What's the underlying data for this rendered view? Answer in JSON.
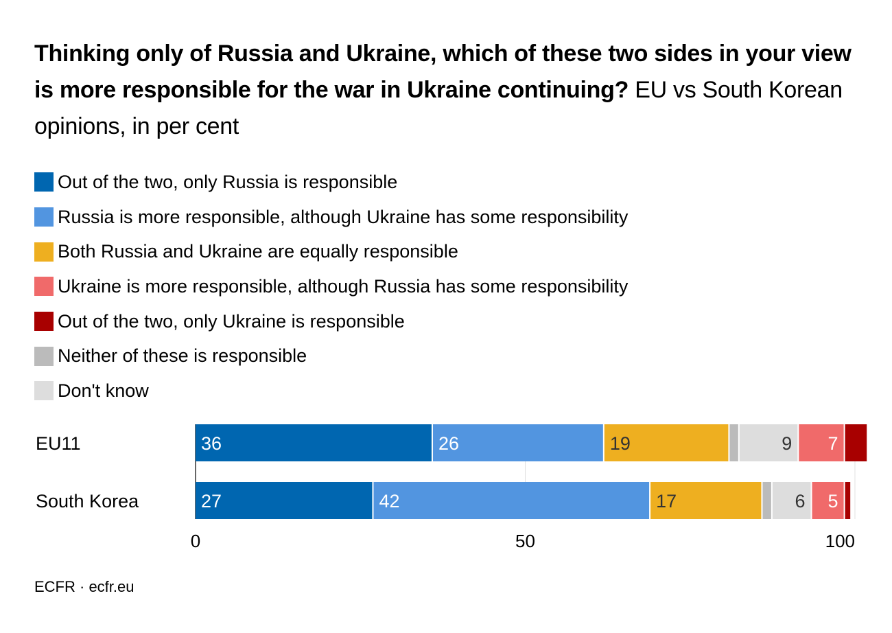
{
  "title_bold": "Thinking only of Russia and Ukraine, which of these two sides in your view is more responsible for the war in Ukraine continuing?",
  "title_rest": "EU vs South Korean opinions, in per cent",
  "source": "ECFR · ecfr.eu",
  "chart_data": {
    "type": "bar",
    "orientation": "horizontal",
    "stacked": true,
    "categories": [
      "EU11",
      "South Korea"
    ],
    "series": [
      {
        "name": "Out of the two, only Russia is responsible",
        "color": "#0066b0",
        "values": [
          36,
          27
        ],
        "labels": [
          "36",
          "27"
        ],
        "label_color": "#ffffff",
        "label_align": "left"
      },
      {
        "name": "Russia is more responsible, although Ukraine has some responsibility",
        "color": "#5295e0",
        "values": [
          26,
          42
        ],
        "labels": [
          "26",
          "42"
        ],
        "label_color": "#ffffff",
        "label_align": "left"
      },
      {
        "name": "Both Russia and Ukraine are equally responsible",
        "color": "#eeaf20",
        "values": [
          19,
          17
        ],
        "labels": [
          "19",
          "17"
        ],
        "label_color": "#333333",
        "label_align": "left"
      },
      {
        "name": "Neither of these is responsible",
        "color": "#bbbbbb",
        "values": [
          1.5,
          1.5
        ],
        "labels": [
          "",
          ""
        ],
        "label_color": "#333333",
        "label_align": "right"
      },
      {
        "name": "Don't know",
        "color": "#dddddd",
        "values": [
          9,
          6
        ],
        "labels": [
          "9",
          "6"
        ],
        "label_color": "#333333",
        "label_align": "right"
      },
      {
        "name": "Ukraine is more responsible, although Russia has some responsibility",
        "color": "#f06a6a",
        "values": [
          7,
          5
        ],
        "labels": [
          "7",
          "5"
        ],
        "label_color": "#ffffff",
        "label_align": "right"
      },
      {
        "name": "Out of the two, only Ukraine is responsible",
        "color": "#a80000",
        "values": [
          3.5,
          1
        ],
        "labels": [
          "",
          ""
        ],
        "label_color": "#ffffff",
        "label_align": "right"
      }
    ],
    "legend_order": [
      "Out of the two, only Russia is responsible",
      "Russia is more responsible, although Ukraine has some responsibility",
      "Both Russia and Ukraine are equally responsible",
      "Ukraine is more responsible, although Russia has some responsibility",
      "Out of the two, only Ukraine is responsible",
      "Neither of these is responsible",
      "Don't know"
    ],
    "x_ticks": [
      0,
      50,
      100
    ],
    "xlim": [
      0,
      100
    ],
    "grid": true,
    "legend_position": "top-left"
  }
}
